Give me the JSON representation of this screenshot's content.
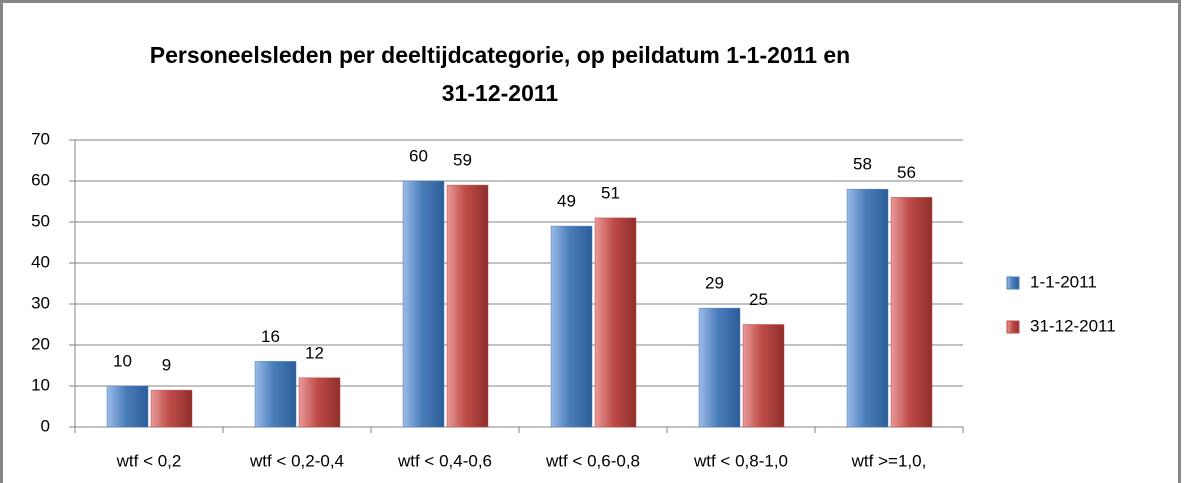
{
  "chart_data": {
    "type": "bar",
    "title": "Personeelsleden per deeltijdcategorie, op peildatum 1-1-2011 en 31-12-2011",
    "categories": [
      "wtf < 0,2",
      "wtf < 0,2-0,4",
      "wtf < 0,4-0,6",
      "wtf < 0,6-0,8",
      "wtf < 0,8-1,0",
      "wtf >=1,0,"
    ],
    "series": [
      {
        "name": "1-1-2011",
        "color": "#4a7ebb",
        "values": [
          10,
          16,
          60,
          49,
          29,
          58
        ]
      },
      {
        "name": "31-12-2011",
        "color": "#be4b48",
        "values": [
          9,
          12,
          59,
          51,
          25,
          56
        ]
      }
    ],
    "ylim": [
      0,
      70
    ],
    "yticks": [
      0,
      10,
      20,
      30,
      40,
      50,
      60,
      70
    ],
    "grid": true,
    "legend": "right"
  }
}
